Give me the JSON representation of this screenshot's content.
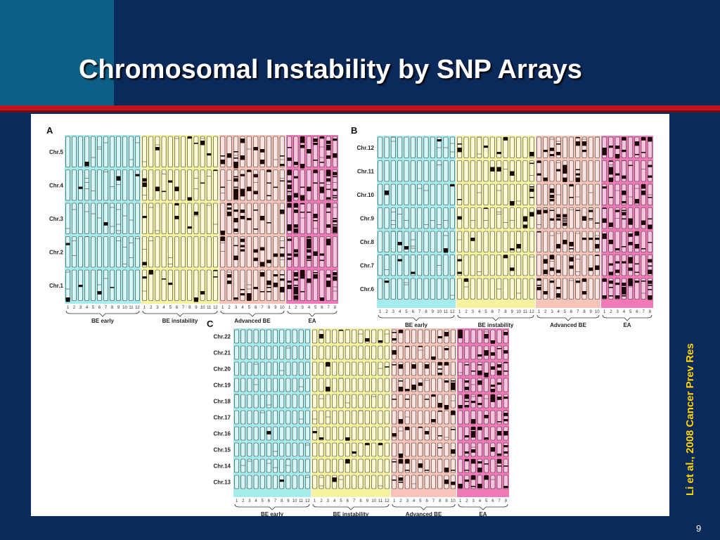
{
  "slide": {
    "title": "Chromosomal Instability by SNP Arrays",
    "citation": "Li et al., 2008 Cancer Prev Res",
    "page_number": "9"
  },
  "colors": {
    "background": "#0b2a5c",
    "corner_block": "#0d5f86",
    "accent_rule": "#c0151c",
    "citation_text": "#ffd400",
    "group_be_early": "#a6ecec",
    "group_be_instability": "#f5f3a0",
    "group_advanced_be": "#f6c4b8",
    "group_ea": "#f07ab8"
  },
  "figure": {
    "panels": [
      {
        "id": "A",
        "letter": "A",
        "chromosomes": [
          "Chr.5",
          "Chr.4",
          "Chr.3",
          "Chr.2",
          "Chr.1"
        ],
        "groups": [
          {
            "label": "BE early",
            "samples": 12,
            "color_key": "group_be_early",
            "density": 0.03
          },
          {
            "label": "BE instability",
            "samples": 12,
            "color_key": "group_be_instability",
            "density": 0.08
          },
          {
            "label": "Advanced BE",
            "samples": 10,
            "color_key": "group_advanced_be",
            "density": 0.35
          },
          {
            "label": "EA",
            "samples": 8,
            "color_key": "group_ea",
            "density": 0.55
          }
        ]
      },
      {
        "id": "B",
        "letter": "B",
        "chromosomes": [
          "Chr.12",
          "Chr.11",
          "Chr.10",
          "Chr.9",
          "Chr.8",
          "Chr.7",
          "Chr.6"
        ],
        "groups": [
          {
            "label": "BE early",
            "samples": 12,
            "color_key": "group_be_early",
            "density": 0.03
          },
          {
            "label": "BE instability",
            "samples": 12,
            "color_key": "group_be_instability",
            "density": 0.09
          },
          {
            "label": "Advanced BE",
            "samples": 10,
            "color_key": "group_advanced_be",
            "density": 0.3
          },
          {
            "label": "EA",
            "samples": 8,
            "color_key": "group_ea",
            "density": 0.5
          }
        ]
      },
      {
        "id": "C",
        "letter": "C",
        "chromosomes": [
          "Chr.22",
          "Chr.21",
          "Chr.20",
          "Chr.19",
          "Chr.18",
          "Chr.17",
          "Chr.16",
          "Chr.15",
          "Chr.14",
          "Chr.13"
        ],
        "groups": [
          {
            "label": "BE early",
            "samples": 12,
            "color_key": "group_be_early",
            "density": 0.02
          },
          {
            "label": "BE instability",
            "samples": 12,
            "color_key": "group_be_instability",
            "density": 0.06
          },
          {
            "label": "Advanced BE",
            "samples": 10,
            "color_key": "group_advanced_be",
            "density": 0.3
          },
          {
            "label": "EA",
            "samples": 8,
            "color_key": "group_ea",
            "density": 0.45
          }
        ]
      }
    ]
  }
}
